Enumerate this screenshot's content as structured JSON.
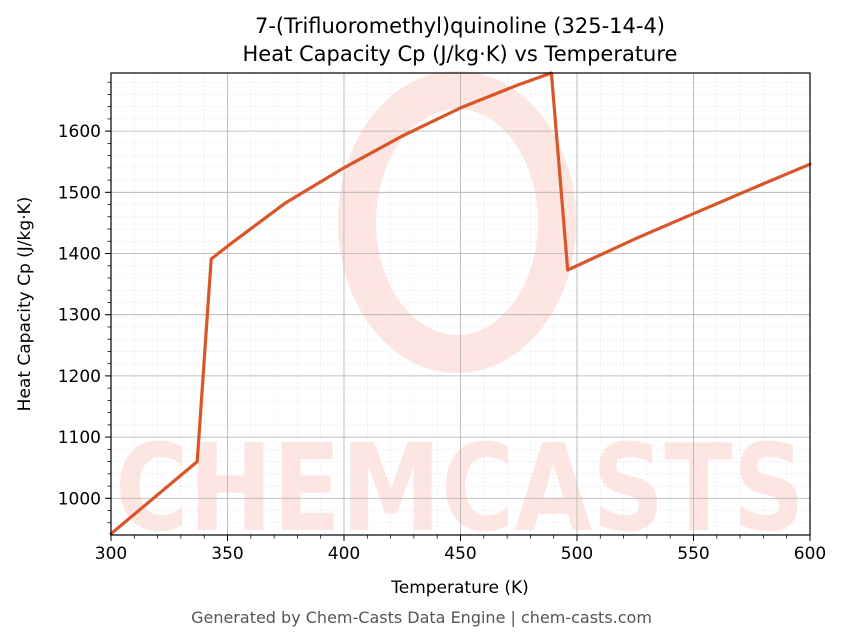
{
  "chart_data": {
    "type": "line",
    "title": "7-(Trifluoromethyl)quinoline (325-14-4)",
    "subtitle": "Heat Capacity Cp (J/kg·K) vs Temperature",
    "xlabel": "Temperature (K)",
    "ylabel": "Heat Capacity Cp (J/kg·K)",
    "xlim": [
      300,
      600
    ],
    "ylim": [
      940,
      1695
    ],
    "xticks": [
      300,
      350,
      400,
      450,
      500,
      550,
      600
    ],
    "yticks": [
      1000,
      1100,
      1200,
      1300,
      1400,
      1500,
      1600
    ],
    "grid": true,
    "series": [
      {
        "color": "#d9562a",
        "x": [
          300,
          337,
          343,
          350,
          375,
          400,
          425,
          450,
          475,
          489,
          496,
          525,
          550,
          575,
          600
        ],
        "y": [
          942,
          1060,
          1391,
          1412,
          1483,
          1540,
          1592,
          1638,
          1676,
          1695,
          1373,
          1424,
          1465,
          1506,
          1546
        ]
      }
    ],
    "watermark": "CHEMCASTS"
  },
  "footer": "Generated by Chem-Casts Data Engine | chem-casts.com"
}
